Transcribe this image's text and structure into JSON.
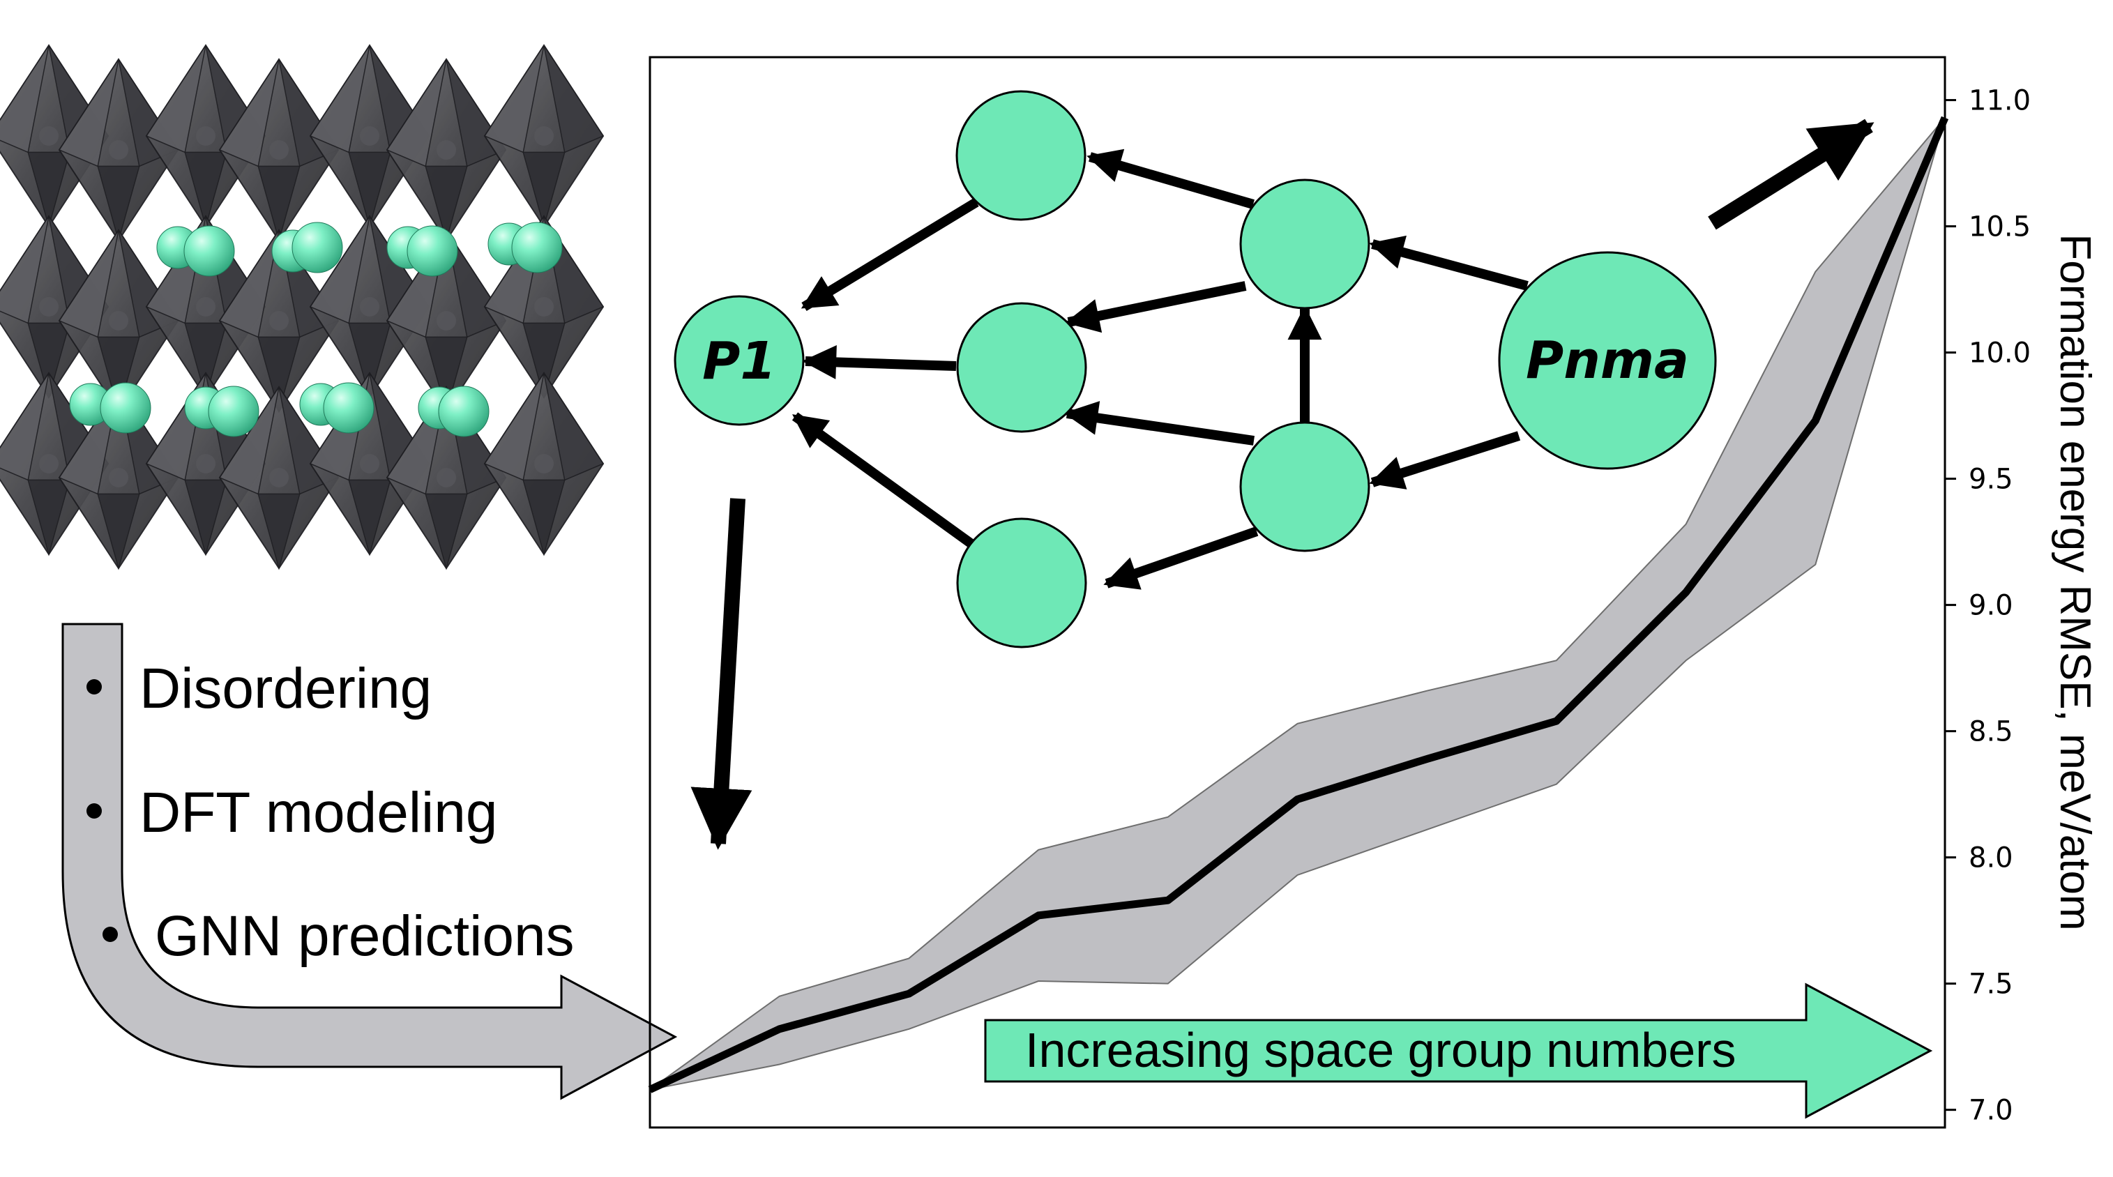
{
  "bullets": [
    "Disordering",
    "DFT modeling",
    "GNN predictions"
  ],
  "nodes": {
    "start_label": "P1",
    "end_label": "Pnma"
  },
  "banner_text": "Increasing space group numbers",
  "chart_data": {
    "type": "line",
    "xlabel": "",
    "ylabel": "Formation energy RMSE, meV/atom",
    "y_axis_side": "right",
    "ylim": [
      6.93,
      11.17
    ],
    "yticks": [
      7.0,
      7.5,
      8.0,
      8.5,
      9.0,
      9.5,
      10.0,
      10.5,
      11.0
    ],
    "ytick_labels": [
      "7.0",
      "7.5",
      "8.0",
      "8.5",
      "9.0",
      "9.5",
      "10.0",
      "10.5",
      "11.0"
    ],
    "x_tick_labels_shown": false,
    "series": [
      {
        "x": [
          0,
          1,
          2,
          3,
          4,
          5,
          6,
          7,
          8,
          9,
          10
        ],
        "values": [
          7.08,
          7.32,
          7.46,
          7.77,
          7.83,
          8.23,
          8.39,
          8.54,
          9.05,
          9.73,
          10.93
        ],
        "upper": [
          7.08,
          7.45,
          7.6,
          8.03,
          8.16,
          8.53,
          8.66,
          8.78,
          9.32,
          10.32,
          10.93
        ],
        "lower": [
          7.08,
          7.18,
          7.32,
          7.51,
          7.5,
          7.93,
          8.11,
          8.29,
          8.78,
          9.16,
          10.93
        ]
      }
    ],
    "colors": {
      "line": "#000000",
      "band_fill": "#bfbfc3",
      "band_edge": "#6e6e6e"
    }
  },
  "colors": {
    "accent_green": "#6ee8b6",
    "octahedron": "#4a4a4e",
    "flow_arrow": "#c2c2c6"
  }
}
